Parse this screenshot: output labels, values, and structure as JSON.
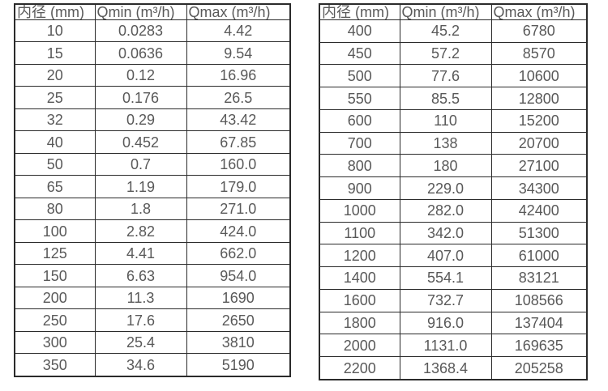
{
  "page": {
    "background": "#ffffff",
    "border_color": "#2b2b2b",
    "text_color": "#595959"
  },
  "tables": [
    {
      "name": "flow-range-table-small-diameters",
      "headers": [
        "内径 (mm)",
        "Qmin (m³/h)",
        "Qmax (m³/h)"
      ],
      "rows": [
        [
          "10",
          "0.0283",
          "4.42"
        ],
        [
          "15",
          "0.0636",
          "9.54"
        ],
        [
          "20",
          "0.12",
          "16.96"
        ],
        [
          "25",
          "0.176",
          "26.5"
        ],
        [
          "32",
          "0.29",
          "43.42"
        ],
        [
          "40",
          "0.452",
          "67.85"
        ],
        [
          "50",
          "0.7",
          "160.0"
        ],
        [
          "65",
          "1.19",
          "179.0"
        ],
        [
          "80",
          "1.8",
          "271.0"
        ],
        [
          "100",
          "2.82",
          "424.0"
        ],
        [
          "125",
          "4.41",
          "662.0"
        ],
        [
          "150",
          "6.63",
          "954.0"
        ],
        [
          "200",
          "11.3",
          "1690"
        ],
        [
          "250",
          "17.6",
          "2650"
        ],
        [
          "300",
          "25.4",
          "3810"
        ],
        [
          "350",
          "34.6",
          "5190"
        ]
      ]
    },
    {
      "name": "flow-range-table-large-diameters",
      "headers": [
        "内径 (mm)",
        "Qmin (m³/h)",
        "Qmax (m³/h)"
      ],
      "rows": [
        [
          "400",
          "45.2",
          "6780"
        ],
        [
          "450",
          "57.2",
          "8570"
        ],
        [
          "500",
          "77.6",
          "10600"
        ],
        [
          "550",
          "85.5",
          "12800"
        ],
        [
          "600",
          "110",
          "15200"
        ],
        [
          "700",
          "138",
          "20700"
        ],
        [
          "800",
          "180",
          "27100"
        ],
        [
          "900",
          "229.0",
          "34300"
        ],
        [
          "1000",
          "282.0",
          "42400"
        ],
        [
          "1100",
          "342.0",
          "51300"
        ],
        [
          "1200",
          "407.0",
          "61000"
        ],
        [
          "1400",
          "554.1",
          "83121"
        ],
        [
          "1600",
          "732.7",
          "108566"
        ],
        [
          "1800",
          "916.0",
          "137404"
        ],
        [
          "2000",
          "1131.0",
          "169635"
        ],
        [
          "2200",
          "1368.4",
          "205258"
        ]
      ]
    }
  ]
}
